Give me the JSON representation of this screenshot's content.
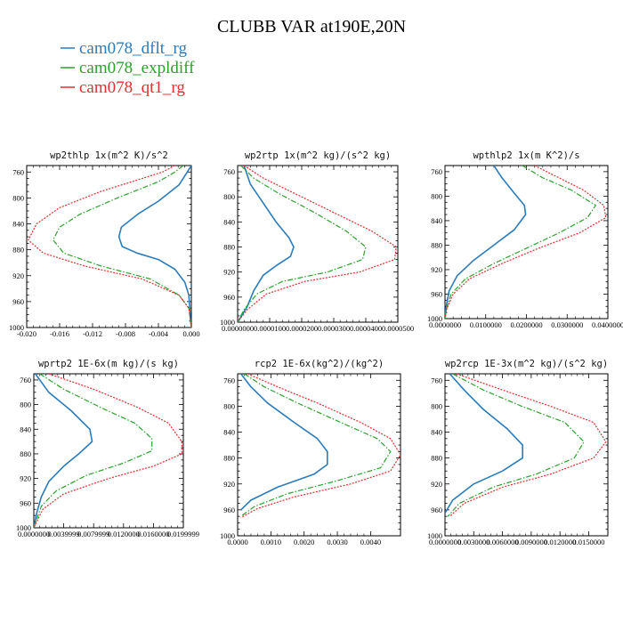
{
  "figure": {
    "title": "CLUBB VAR at190E,20N",
    "legend": [
      {
        "label": "cam078_dflt_rg",
        "color": "#2b7bba",
        "dash": "solid"
      },
      {
        "label": "cam078_expldiff",
        "color": "#2ca02c",
        "dash": "dashdot"
      },
      {
        "label": "cam078_qt1_rg",
        "color": "#e03030",
        "dash": "dotted"
      }
    ]
  },
  "chart_data": [
    {
      "type": "line",
      "title": "wp2thlp  1x(m^2 K)/s^2",
      "xlim": [
        -0.02,
        0.0
      ],
      "xticks": [
        "-0.020",
        "-0.016",
        "-0.012",
        "-0.008",
        "-0.004",
        "0.000"
      ],
      "ylim": [
        1000,
        750
      ],
      "yticks": [
        "760",
        "800",
        "840",
        "880",
        "920",
        "960",
        "1000"
      ],
      "series": [
        {
          "values": [
            [
              0.0,
              750
            ],
            [
              -0.0005,
              760
            ],
            [
              -0.0015,
              780
            ],
            [
              -0.004,
              805
            ],
            [
              -0.0065,
              825
            ],
            [
              -0.0085,
              845
            ],
            [
              -0.0088,
              860
            ],
            [
              -0.0084,
              875
            ],
            [
              -0.0066,
              885
            ],
            [
              -0.004,
              895
            ],
            [
              -0.002,
              910
            ],
            [
              -0.0008,
              930
            ],
            [
              -0.0003,
              950
            ],
            [
              -0.0002,
              970
            ],
            [
              -0.0001,
              990
            ],
            [
              0.0,
              1000
            ]
          ]
        },
        {
          "values": [
            [
              -0.001,
              750
            ],
            [
              -0.002,
              760
            ],
            [
              -0.004,
              775
            ],
            [
              -0.009,
              800
            ],
            [
              -0.0135,
              825
            ],
            [
              -0.016,
              845
            ],
            [
              -0.0168,
              865
            ],
            [
              -0.0155,
              885
            ],
            [
              -0.011,
              905
            ],
            [
              -0.005,
              925
            ],
            [
              -0.0015,
              950
            ],
            [
              -0.0003,
              970
            ],
            [
              0.0,
              1000
            ]
          ]
        },
        {
          "values": [
            [
              -0.002,
              750
            ],
            [
              -0.0035,
              760
            ],
            [
              -0.006,
              770
            ],
            [
              -0.011,
              790
            ],
            [
              -0.016,
              815
            ],
            [
              -0.0188,
              840
            ],
            [
              -0.0198,
              865
            ],
            [
              -0.018,
              885
            ],
            [
              -0.013,
              905
            ],
            [
              -0.006,
              925
            ],
            [
              -0.0015,
              950
            ],
            [
              -0.0003,
              970
            ],
            [
              0.0,
              1000
            ]
          ]
        }
      ]
    },
    {
      "type": "line",
      "title": "wp2rtp  1x(m^2 kg)/(s^2 kg)",
      "xlim": [
        0.0,
        5e-05
      ],
      "xticks": [
        "0.0000000",
        "0.0000100",
        "0.0000200",
        "0.0000300",
        "0.0000400",
        "0.0000500"
      ],
      "ylim": [
        1000,
        750
      ],
      "yticks": [
        "760",
        "800",
        "840",
        "880",
        "920",
        "960",
        "1000"
      ],
      "series": [
        {
          "values": [
            [
              2e-06,
              750
            ],
            [
              4e-06,
              780
            ],
            [
              8e-06,
              810
            ],
            [
              1.2e-05,
              840
            ],
            [
              1.6e-05,
              865
            ],
            [
              1.75e-05,
              880
            ],
            [
              1.65e-05,
              895
            ],
            [
              1.2e-05,
              910
            ],
            [
              8e-06,
              925
            ],
            [
              5e-06,
              950
            ],
            [
              3e-06,
              975
            ],
            [
              0.0,
              1000
            ]
          ]
        },
        {
          "values": [
            [
              1e-06,
              750
            ],
            [
              5e-06,
              770
            ],
            [
              1.3e-05,
              795
            ],
            [
              2.4e-05,
              825
            ],
            [
              3.4e-05,
              855
            ],
            [
              4e-05,
              880
            ],
            [
              3.9e-05,
              900
            ],
            [
              2.8e-05,
              920
            ],
            [
              1.4e-05,
              935
            ],
            [
              6e-06,
              955
            ],
            [
              2e-06,
              980
            ],
            [
              0.0,
              1000
            ]
          ]
        },
        {
          "values": [
            [
              2e-06,
              750
            ],
            [
              8e-06,
              770
            ],
            [
              1.8e-05,
              795
            ],
            [
              3e-05,
              825
            ],
            [
              4.2e-05,
              855
            ],
            [
              4.95e-05,
              880
            ],
            [
              4.9e-05,
              900
            ],
            [
              3.8e-05,
              920
            ],
            [
              2.1e-05,
              935
            ],
            [
              9e-06,
              955
            ],
            [
              3e-06,
              980
            ],
            [
              0.0,
              1000
            ]
          ]
        }
      ]
    },
    {
      "type": "line",
      "title": "wpthlp2  1x(m K^2)/s",
      "xlim": [
        0.0,
        0.04
      ],
      "xticks": [
        "0.0000000",
        "0.0100000",
        "0.0200000",
        "0.0300000",
        "0.0400000"
      ],
      "ylim": [
        1000,
        750
      ],
      "yticks": [
        "760",
        "800",
        "840",
        "880",
        "920",
        "960",
        "1000"
      ],
      "series": [
        {
          "values": [
            [
              0.012,
              750
            ],
            [
              0.014,
              770
            ],
            [
              0.017,
              795
            ],
            [
              0.0195,
              815
            ],
            [
              0.0198,
              830
            ],
            [
              0.017,
              855
            ],
            [
              0.012,
              880
            ],
            [
              0.007,
              905
            ],
            [
              0.003,
              930
            ],
            [
              0.001,
              955
            ],
            [
              0.0003,
              980
            ],
            [
              0.0,
              1000
            ]
          ]
        },
        {
          "values": [
            [
              0.019,
              750
            ],
            [
              0.024,
              770
            ],
            [
              0.031,
              790
            ],
            [
              0.037,
              815
            ],
            [
              0.035,
              835
            ],
            [
              0.028,
              860
            ],
            [
              0.02,
              885
            ],
            [
              0.012,
              910
            ],
            [
              0.005,
              935
            ],
            [
              0.0015,
              960
            ],
            [
              0.0003,
              985
            ],
            [
              0.0,
              1000
            ]
          ]
        },
        {
          "values": [
            [
              0.022,
              750
            ],
            [
              0.028,
              770
            ],
            [
              0.034,
              790
            ],
            [
              0.039,
              815
            ],
            [
              0.0395,
              835
            ],
            [
              0.033,
              860
            ],
            [
              0.023,
              885
            ],
            [
              0.014,
              910
            ],
            [
              0.006,
              935
            ],
            [
              0.002,
              960
            ],
            [
              0.0004,
              985
            ],
            [
              0.0,
              1000
            ]
          ]
        }
      ]
    },
    {
      "type": "line",
      "title": "wprtp2  1E-6x(m kg)/(s kg)",
      "xlim": [
        0.0,
        0.02
      ],
      "xticks": [
        "0.0000000",
        "0.0039999",
        "0.0079999",
        "0.0120000",
        "0.0160000",
        "0.0199999"
      ],
      "ylim": [
        1000,
        750
      ],
      "yticks": [
        "760",
        "800",
        "840",
        "880",
        "920",
        "960",
        "1000"
      ],
      "series": [
        {
          "values": [
            [
              0.0002,
              750
            ],
            [
              0.002,
              780
            ],
            [
              0.005,
              810
            ],
            [
              0.0075,
              840
            ],
            [
              0.0078,
              860
            ],
            [
              0.006,
              880
            ],
            [
              0.004,
              900
            ],
            [
              0.002,
              925
            ],
            [
              0.001,
              950
            ],
            [
              0.0004,
              975
            ],
            [
              0.0,
              1000
            ]
          ]
        },
        {
          "values": [
            [
              0.0008,
              750
            ],
            [
              0.004,
              775
            ],
            [
              0.009,
              805
            ],
            [
              0.0135,
              830
            ],
            [
              0.0158,
              855
            ],
            [
              0.0158,
              875
            ],
            [
              0.012,
              895
            ],
            [
              0.007,
              915
            ],
            [
              0.003,
              940
            ],
            [
              0.001,
              965
            ],
            [
              0.0,
              1000
            ]
          ]
        },
        {
          "values": [
            [
              0.002,
              750
            ],
            [
              0.008,
              775
            ],
            [
              0.014,
              805
            ],
            [
              0.018,
              830
            ],
            [
              0.0198,
              860
            ],
            [
              0.0198,
              880
            ],
            [
              0.016,
              900
            ],
            [
              0.01,
              920
            ],
            [
              0.004,
              945
            ],
            [
              0.0012,
              970
            ],
            [
              0.0,
              1000
            ]
          ]
        }
      ]
    },
    {
      "type": "line",
      "title": "rcp2  1E-6x(kg^2)/(kg^2)",
      "xlim": [
        0.0,
        0.0049
      ],
      "xticks": [
        "0.0000",
        "0.0010",
        "0.0020",
        "0.0030",
        "0.0040"
      ],
      "ylim": [
        1000,
        750
      ],
      "yticks": [
        "760",
        "800",
        "840",
        "880",
        "920",
        "960",
        "1000"
      ],
      "series": [
        {
          "values": [
            [
              0.0001,
              750
            ],
            [
              0.0004,
              770
            ],
            [
              0.0009,
              795
            ],
            [
              0.0017,
              825
            ],
            [
              0.0024,
              850
            ],
            [
              0.0027,
              870
            ],
            [
              0.0027,
              890
            ],
            [
              0.0023,
              905
            ],
            [
              0.0012,
              925
            ],
            [
              0.0004,
              945
            ],
            [
              0.0001,
              960
            ]
          ]
        },
        {
          "values": [
            [
              0.0002,
              750
            ],
            [
              0.0008,
              770
            ],
            [
              0.0018,
              795
            ],
            [
              0.0031,
              825
            ],
            [
              0.0042,
              850
            ],
            [
              0.0046,
              870
            ],
            [
              0.0043,
              895
            ],
            [
              0.003,
              915
            ],
            [
              0.0015,
              935
            ],
            [
              0.0005,
              955
            ],
            [
              0.0001,
              970
            ]
          ]
        },
        {
          "values": [
            [
              0.0003,
              750
            ],
            [
              0.0012,
              770
            ],
            [
              0.0024,
              795
            ],
            [
              0.0037,
              825
            ],
            [
              0.0046,
              850
            ],
            [
              0.0049,
              875
            ],
            [
              0.0046,
              900
            ],
            [
              0.0034,
              920
            ],
            [
              0.0017,
              940
            ],
            [
              0.0006,
              958
            ],
            [
              0.0001,
              972
            ]
          ]
        }
      ]
    },
    {
      "type": "line",
      "title": "wp2rcp  1E-3x(m^2 kg)/(s^2 kg)",
      "xlim": [
        0.0,
        0.017
      ],
      "xticks": [
        "0.0000000",
        "0.0030000",
        "0.0060000",
        "0.0090000",
        "0.0120000",
        "0.0150000"
      ],
      "ylim": [
        1000,
        750
      ],
      "yticks": [
        "760",
        "800",
        "840",
        "880",
        "920",
        "960",
        "1000"
      ],
      "series": [
        {
          "values": [
            [
              0.0005,
              750
            ],
            [
              0.002,
              775
            ],
            [
              0.004,
              805
            ],
            [
              0.0065,
              835
            ],
            [
              0.0081,
              860
            ],
            [
              0.0081,
              880
            ],
            [
              0.006,
              900
            ],
            [
              0.003,
              920
            ],
            [
              0.0008,
              945
            ],
            [
              0.0,
              965
            ]
          ]
        },
        {
          "values": [
            [
              0.0008,
              750
            ],
            [
              0.004,
              775
            ],
            [
              0.008,
              800
            ],
            [
              0.0125,
              825
            ],
            [
              0.0145,
              855
            ],
            [
              0.0135,
              880
            ],
            [
              0.0095,
              905
            ],
            [
              0.005,
              925
            ],
            [
              0.0015,
              950
            ],
            [
              0.0003,
              970
            ]
          ]
        },
        {
          "values": [
            [
              0.0012,
              750
            ],
            [
              0.006,
              775
            ],
            [
              0.011,
              800
            ],
            [
              0.0155,
              825
            ],
            [
              0.0168,
              855
            ],
            [
              0.0155,
              880
            ],
            [
              0.011,
              905
            ],
            [
              0.006,
              925
            ],
            [
              0.002,
              950
            ],
            [
              0.0005,
              970
            ]
          ]
        }
      ]
    }
  ]
}
